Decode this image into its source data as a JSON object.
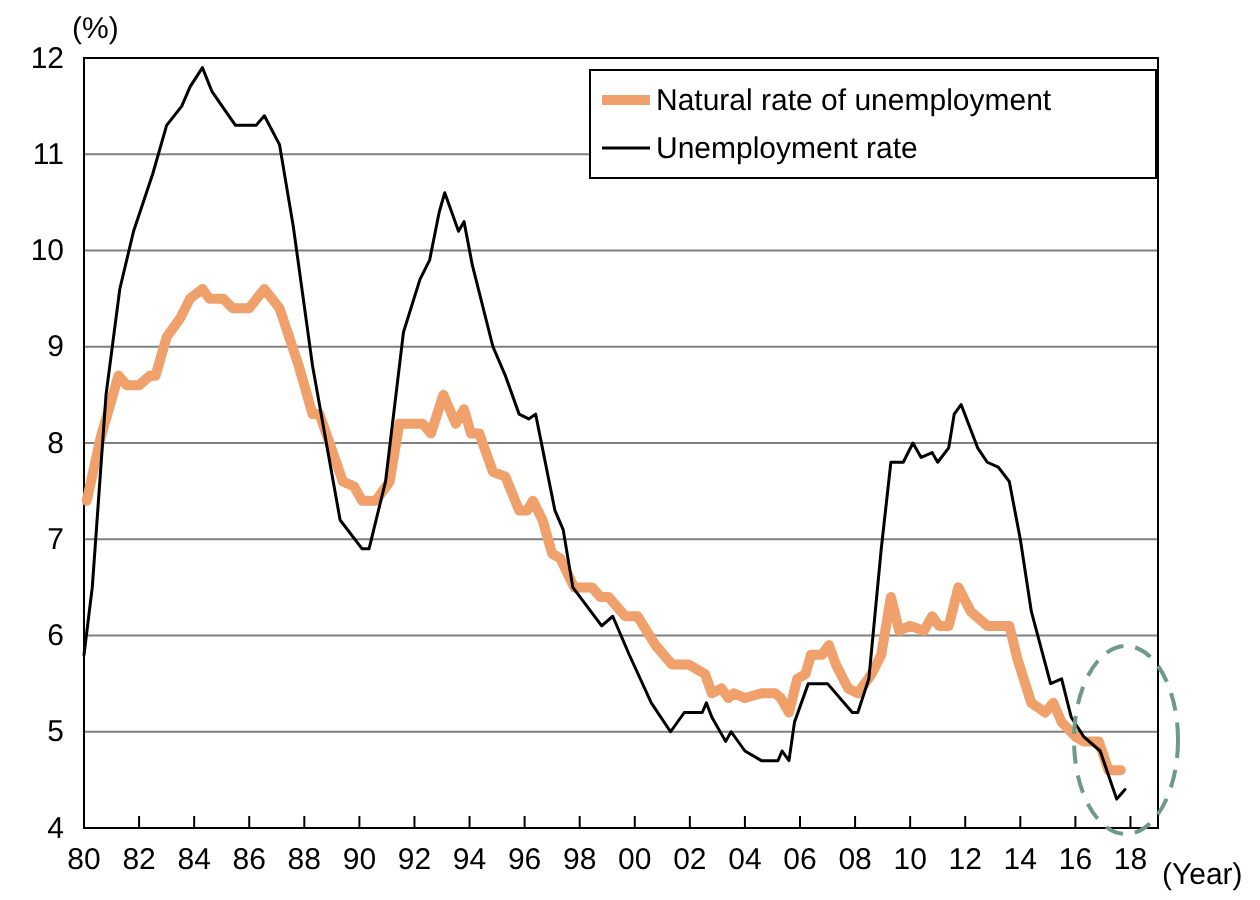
{
  "chart_data": {
    "type": "line",
    "ylabel": "(%)",
    "xlabel": "(Year)",
    "xlim": [
      1980,
      2019
    ],
    "ylim": [
      4,
      12
    ],
    "yticks": [
      4,
      5,
      6,
      7,
      8,
      9,
      10,
      11,
      12
    ],
    "xticks": [
      {
        "value": 1980,
        "label": "80"
      },
      {
        "value": 1982,
        "label": "82"
      },
      {
        "value": 1984,
        "label": "84"
      },
      {
        "value": 1986,
        "label": "86"
      },
      {
        "value": 1988,
        "label": "88"
      },
      {
        "value": 1990,
        "label": "90"
      },
      {
        "value": 1992,
        "label": "92"
      },
      {
        "value": 1994,
        "label": "94"
      },
      {
        "value": 1996,
        "label": "96"
      },
      {
        "value": 1998,
        "label": "98"
      },
      {
        "value": 2000,
        "label": "00"
      },
      {
        "value": 2002,
        "label": "02"
      },
      {
        "value": 2004,
        "label": "04"
      },
      {
        "value": 2006,
        "label": "06"
      },
      {
        "value": 2008,
        "label": "08"
      },
      {
        "value": 2010,
        "label": "10"
      },
      {
        "value": 2012,
        "label": "12"
      },
      {
        "value": 2014,
        "label": "14"
      },
      {
        "value": 2016,
        "label": "16"
      },
      {
        "value": 2018,
        "label": "18"
      }
    ],
    "grid": "y",
    "legend": "top right",
    "marker": "none",
    "line_style": "solid",
    "series": [
      {
        "name": "Natural rate of unemployment",
        "color": "#f0a06a",
        "x": [
          1980.1,
          1980.6,
          1981.25,
          1981.55,
          1982.0,
          1982.4,
          1982.6,
          1983.0,
          1983.5,
          1983.85,
          1984.3,
          1984.55,
          1985.05,
          1985.4,
          1986.0,
          1986.55,
          1987.1,
          1987.8,
          1988.3,
          1988.55,
          1989.4,
          1989.8,
          1990.1,
          1990.6,
          1991.1,
          1991.45,
          1992.3,
          1992.6,
          1993.05,
          1993.5,
          1993.8,
          1994.05,
          1994.35,
          1994.85,
          1995.3,
          1995.8,
          1996.1,
          1996.3,
          1996.65,
          1997.0,
          1997.3,
          1997.8,
          1998.45,
          1998.75,
          1999.05,
          1999.65,
          2000.1,
          2000.75,
          2001.35,
          2001.95,
          2002.55,
          2002.8,
          2003.15,
          2003.4,
          2003.6,
          2004.0,
          2004.6,
          2005.1,
          2005.3,
          2005.6,
          2005.9,
          2006.2,
          2006.4,
          2006.8,
          2007.05,
          2007.3,
          2007.75,
          2008.1,
          2008.6,
          2008.95,
          2009.3,
          2009.6,
          2010.0,
          2010.5,
          2010.8,
          2011.05,
          2011.4,
          2011.75,
          2012.2,
          2012.8,
          2013.6,
          2013.9,
          2014.4,
          2014.9,
          2015.2,
          2015.5,
          2016.0,
          2016.3,
          2016.85,
          2017.2,
          2017.65
        ],
        "values": [
          7.4,
          8.05,
          8.7,
          8.6,
          8.6,
          8.7,
          8.7,
          9.1,
          9.3,
          9.5,
          9.6,
          9.5,
          9.5,
          9.4,
          9.4,
          9.6,
          9.4,
          8.8,
          8.3,
          8.3,
          7.6,
          7.55,
          7.4,
          7.4,
          7.6,
          8.2,
          8.2,
          8.1,
          8.5,
          8.2,
          8.35,
          8.1,
          8.1,
          7.7,
          7.65,
          7.3,
          7.3,
          7.4,
          7.2,
          6.85,
          6.8,
          6.5,
          6.5,
          6.4,
          6.4,
          6.2,
          6.2,
          5.9,
          5.7,
          5.7,
          5.6,
          5.4,
          5.45,
          5.35,
          5.4,
          5.35,
          5.4,
          5.4,
          5.35,
          5.2,
          5.55,
          5.6,
          5.8,
          5.8,
          5.9,
          5.7,
          5.45,
          5.4,
          5.6,
          5.8,
          6.4,
          6.05,
          6.1,
          6.05,
          6.2,
          6.1,
          6.1,
          6.5,
          6.25,
          6.1,
          6.1,
          5.75,
          5.3,
          5.2,
          5.3,
          5.1,
          4.95,
          4.9,
          4.9,
          4.6,
          4.6
        ]
      },
      {
        "name": "Unemployment rate",
        "color": "#000000",
        "x": [
          1980.0,
          1980.3,
          1980.8,
          1981.3,
          1981.8,
          1982.5,
          1983.0,
          1983.55,
          1983.85,
          1984.3,
          1984.65,
          1985.5,
          1986.25,
          1986.55,
          1987.1,
          1987.6,
          1988.3,
          1989.3,
          1990.1,
          1990.35,
          1990.95,
          1991.6,
          1992.2,
          1992.55,
          1992.9,
          1993.1,
          1993.6,
          1993.8,
          1994.1,
          1994.85,
          1995.3,
          1995.8,
          1996.15,
          1996.4,
          1997.1,
          1997.4,
          1997.75,
          1998.8,
          1999.2,
          1999.8,
          2000.6,
          2001.3,
          2001.8,
          2002.45,
          2002.6,
          2002.8,
          2003.3,
          2003.5,
          2004.0,
          2004.6,
          2005.2,
          2005.35,
          2005.6,
          2005.8,
          2006.3,
          2007.0,
          2007.9,
          2008.1,
          2008.5,
          2008.95,
          2009.3,
          2009.75,
          2010.1,
          2010.4,
          2010.8,
          2011.0,
          2011.4,
          2011.6,
          2011.85,
          2012.45,
          2012.8,
          2013.2,
          2013.6,
          2014.0,
          2014.4,
          2015.1,
          2015.5,
          2015.85,
          2016.3,
          2016.9,
          2017.5,
          2017.8
        ],
        "values": [
          5.8,
          6.5,
          8.5,
          9.6,
          10.2,
          10.8,
          11.3,
          11.5,
          11.7,
          11.9,
          11.65,
          11.3,
          11.3,
          11.4,
          11.1,
          10.25,
          8.8,
          7.2,
          6.9,
          6.9,
          7.6,
          9.15,
          9.7,
          9.9,
          10.4,
          10.6,
          10.2,
          10.3,
          9.85,
          9.0,
          8.7,
          8.3,
          8.25,
          8.3,
          7.3,
          7.1,
          6.5,
          6.1,
          6.2,
          5.8,
          5.3,
          5.0,
          5.2,
          5.2,
          5.3,
          5.15,
          4.9,
          5.0,
          4.8,
          4.7,
          4.7,
          4.8,
          4.7,
          5.1,
          5.5,
          5.5,
          5.2,
          5.2,
          5.55,
          6.9,
          7.8,
          7.8,
          8.0,
          7.85,
          7.9,
          7.8,
          7.95,
          8.3,
          8.4,
          7.95,
          7.8,
          7.75,
          7.6,
          7.0,
          6.25,
          5.5,
          5.55,
          5.15,
          4.95,
          4.8,
          4.3,
          4.4
        ]
      }
    ]
  }
}
